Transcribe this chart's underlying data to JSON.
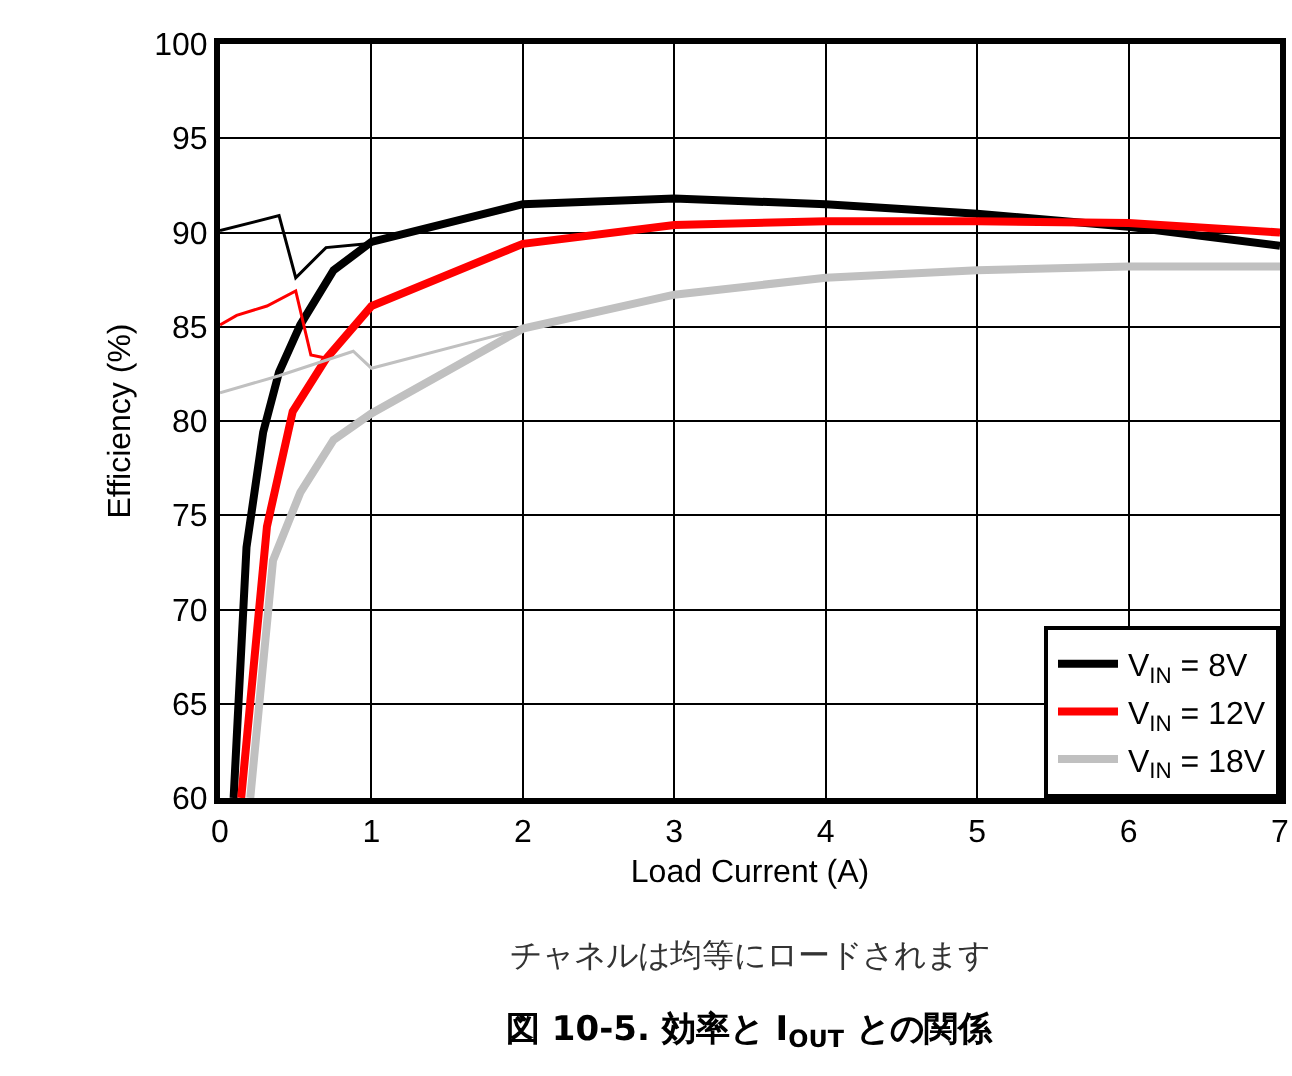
{
  "chart_data": {
    "type": "line",
    "title": "図 10-5. 効率と I$_{OUT}$ との関係",
    "xlabel": "Load Current (A)",
    "ylabel": "Efficiency (%)",
    "annotations": [
      "チャネルは均等にロードされます"
    ],
    "series": [
      {
        "name": "V$_{IN}$ = 8V",
        "color": "#000000",
        "x": [
          0.09,
          0.175,
          0.285,
          0.39,
          0.53,
          0.75,
          1,
          2,
          3,
          4,
          5,
          6,
          7
        ],
        "values": [
          60,
          73.3,
          79.4,
          82.6,
          85.1,
          88.0,
          89.5,
          91.5,
          91.8,
          91.5,
          91.0,
          90.3,
          89.3
        ]
      },
      {
        "name": "V$_{IN}$ = 12V",
        "color": "#ff0000",
        "x": [
          0.14,
          0.31,
          0.48,
          0.7,
          1,
          2,
          3,
          4,
          5,
          6,
          7
        ],
        "values": [
          60,
          74.4,
          80.5,
          83.3,
          86.1,
          89.4,
          90.4,
          90.6,
          90.6,
          90.5,
          90.0
        ]
      },
      {
        "name": "V$_{IN}$ = 18V",
        "color": "#c0c0c0",
        "x": [
          0.2,
          0.35,
          0.53,
          0.75,
          1,
          2,
          3,
          4,
          5,
          6,
          7
        ],
        "values": [
          60,
          72.6,
          76.2,
          79.0,
          80.4,
          84.9,
          86.7,
          87.6,
          88.0,
          88.2,
          88.2
        ]
      },
      {
        "color": "#000000",
        "x": [
          0,
          0.39,
          0.5,
          0.7,
          0.97
        ],
        "values": [
          90.1,
          90.9,
          87.6,
          89.2,
          89.4
        ]
      },
      {
        "color": "#ff0000",
        "x": [
          0,
          0.11,
          0.31,
          0.5,
          0.6,
          0.72
        ],
        "values": [
          85.1,
          85.6,
          86.1,
          86.9,
          83.5,
          83.3
        ]
      },
      {
        "color": "#c0c0c0",
        "x": [
          0,
          0.39,
          0.88,
          1,
          2
        ],
        "values": [
          81.5,
          82.4,
          83.7,
          82.8,
          84.9
        ]
      }
    ],
    "xlim": [
      0,
      7
    ],
    "xticks": [
      0,
      1,
      2,
      3,
      4,
      5,
      6,
      7
    ],
    "ylim": [
      60,
      100
    ],
    "yticks": [
      60,
      65,
      70,
      75,
      80,
      85,
      90,
      95,
      100
    ],
    "grid": true,
    "legend": "bottom right",
    "marker": "none",
    "line_style": "solid"
  }
}
